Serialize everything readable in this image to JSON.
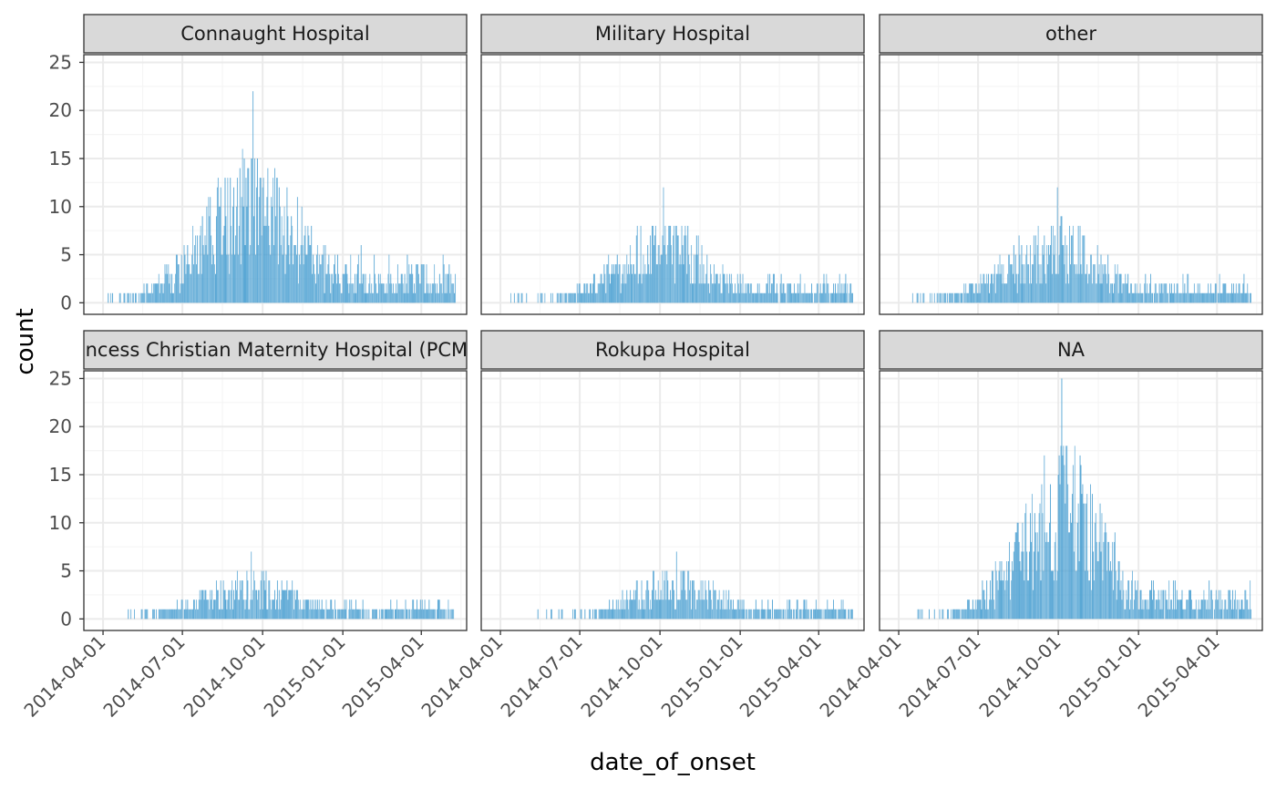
{
  "chart_data": {
    "type": "bar",
    "chart_kind": "faceted daily histogram",
    "xlabel": "date_of_onset",
    "ylabel": "count",
    "xlim": [
      "2014-03-10",
      "2015-05-23"
    ],
    "ylim": [
      -1.2,
      25.8
    ],
    "x_ticks": [
      "2014-04-01",
      "2014-07-01",
      "2014-10-01",
      "2015-01-01",
      "2015-04-01"
    ],
    "y_ticks": [
      0,
      5,
      10,
      15,
      20,
      25
    ],
    "x_tick_label_rotation_deg": -45,
    "grid": true,
    "bar_color": "#4a9fd1",
    "theme": {
      "strip_fill": "#d9d9d9",
      "panel_border": "#333333",
      "grid_major": "#ebebeb",
      "grid_minor": "#f5f5f5"
    },
    "facets": [
      {
        "label": "Connaught Hospital",
        "start": "2014-04-07",
        "end": "2015-05-10",
        "peak_date": "2014-09-20",
        "peak": 22,
        "spread_days": 58,
        "tail_level": 2.5,
        "early_level": 0.6
      },
      {
        "label": "Military Hospital",
        "start": "2014-04-10",
        "end": "2015-05-10",
        "peak_date": "2014-10-05",
        "peak": 12,
        "spread_days": 55,
        "tail_level": 1.5,
        "early_level": 0.4
      },
      {
        "label": "other",
        "start": "2014-04-16",
        "end": "2015-05-10",
        "peak_date": "2014-09-30",
        "peak": 12,
        "spread_days": 58,
        "tail_level": 1.5,
        "early_level": 0.4
      },
      {
        "label": "Princess Christian Maternity Hospital (PCMH)",
        "start": "2014-04-28",
        "end": "2015-05-08",
        "peak_date": "2014-09-18",
        "peak": 7,
        "spread_days": 60,
        "tail_level": 1.1,
        "early_level": 0.3
      },
      {
        "label": "Rokupa Hospital",
        "start": "2014-05-10",
        "end": "2015-05-10",
        "peak_date": "2014-10-20",
        "peak": 7,
        "spread_days": 55,
        "tail_level": 1.1,
        "early_level": 0.3
      },
      {
        "label": "NA",
        "start": "2014-04-22",
        "end": "2015-05-10",
        "peak_date": "2014-10-05",
        "peak": 25,
        "spread_days": 50,
        "tail_level": 2.0,
        "early_level": 0.5
      }
    ]
  }
}
